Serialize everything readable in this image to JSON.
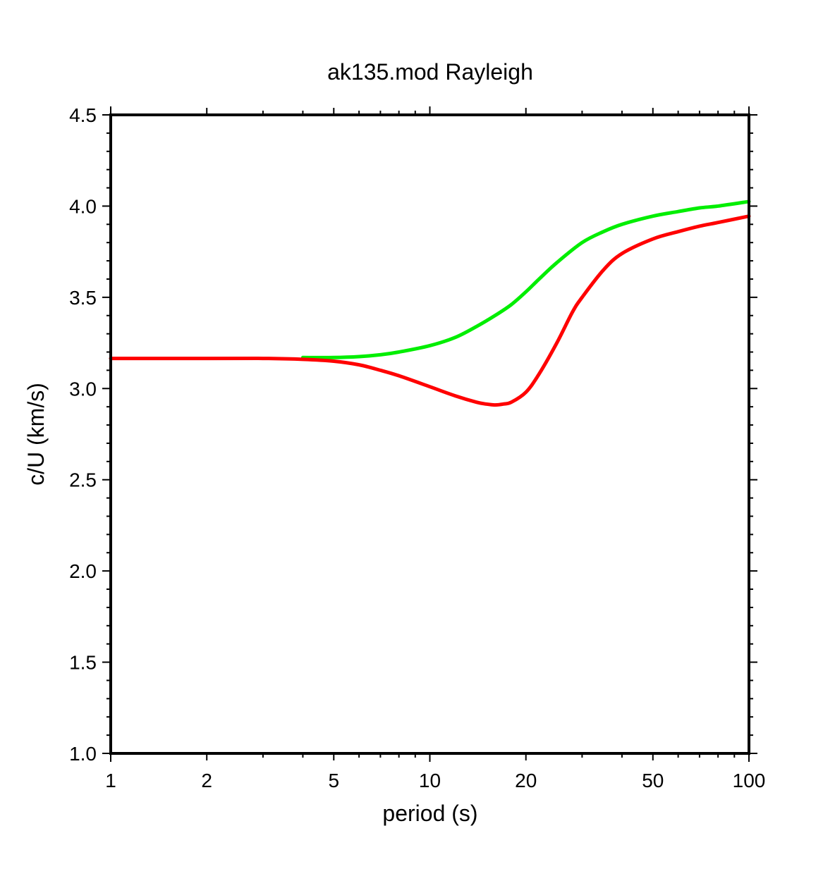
{
  "chart_data": {
    "type": "line",
    "title": "ak135.mod Rayleigh",
    "xlabel": "period (s)",
    "ylabel": "c/U (km/s)",
    "xscale": "log",
    "xlim": [
      1,
      100
    ],
    "ylim": [
      1.0,
      4.5
    ],
    "grid": false,
    "xticks": [
      1,
      2,
      5,
      10,
      20,
      50,
      100
    ],
    "xtick_labels": [
      "1",
      "2",
      "5",
      "10",
      "20",
      "50",
      "100"
    ],
    "yticks": [
      1.0,
      1.5,
      2.0,
      2.5,
      3.0,
      3.5,
      4.0,
      4.5
    ],
    "ytick_labels": [
      "1.0",
      "1.5",
      "2.0",
      "2.5",
      "3.0",
      "3.5",
      "4.0",
      "4.5"
    ],
    "series": [
      {
        "color": "#00ee00",
        "x": [
          4,
          5,
          6,
          7,
          8,
          10,
          12,
          14,
          16,
          18,
          20,
          22,
          25,
          30,
          35,
          40,
          50,
          60,
          70,
          80,
          100
        ],
        "y": [
          3.17,
          3.17,
          3.175,
          3.185,
          3.2,
          3.235,
          3.28,
          3.34,
          3.4,
          3.46,
          3.53,
          3.6,
          3.69,
          3.8,
          3.86,
          3.9,
          3.945,
          3.97,
          3.99,
          4.0,
          4.025
        ]
      },
      {
        "color": "#ff0000",
        "x": [
          1,
          2,
          3,
          4,
          5,
          6,
          7,
          8,
          10,
          12,
          14,
          15,
          16,
          17,
          18,
          20,
          22,
          25,
          28,
          30,
          35,
          40,
          50,
          60,
          70,
          80,
          100
        ],
        "y": [
          3.165,
          3.165,
          3.165,
          3.16,
          3.15,
          3.13,
          3.1,
          3.07,
          3.01,
          2.96,
          2.925,
          2.915,
          2.91,
          2.915,
          2.925,
          2.98,
          3.08,
          3.25,
          3.42,
          3.5,
          3.65,
          3.74,
          3.82,
          3.86,
          3.89,
          3.91,
          3.945
        ]
      }
    ]
  }
}
